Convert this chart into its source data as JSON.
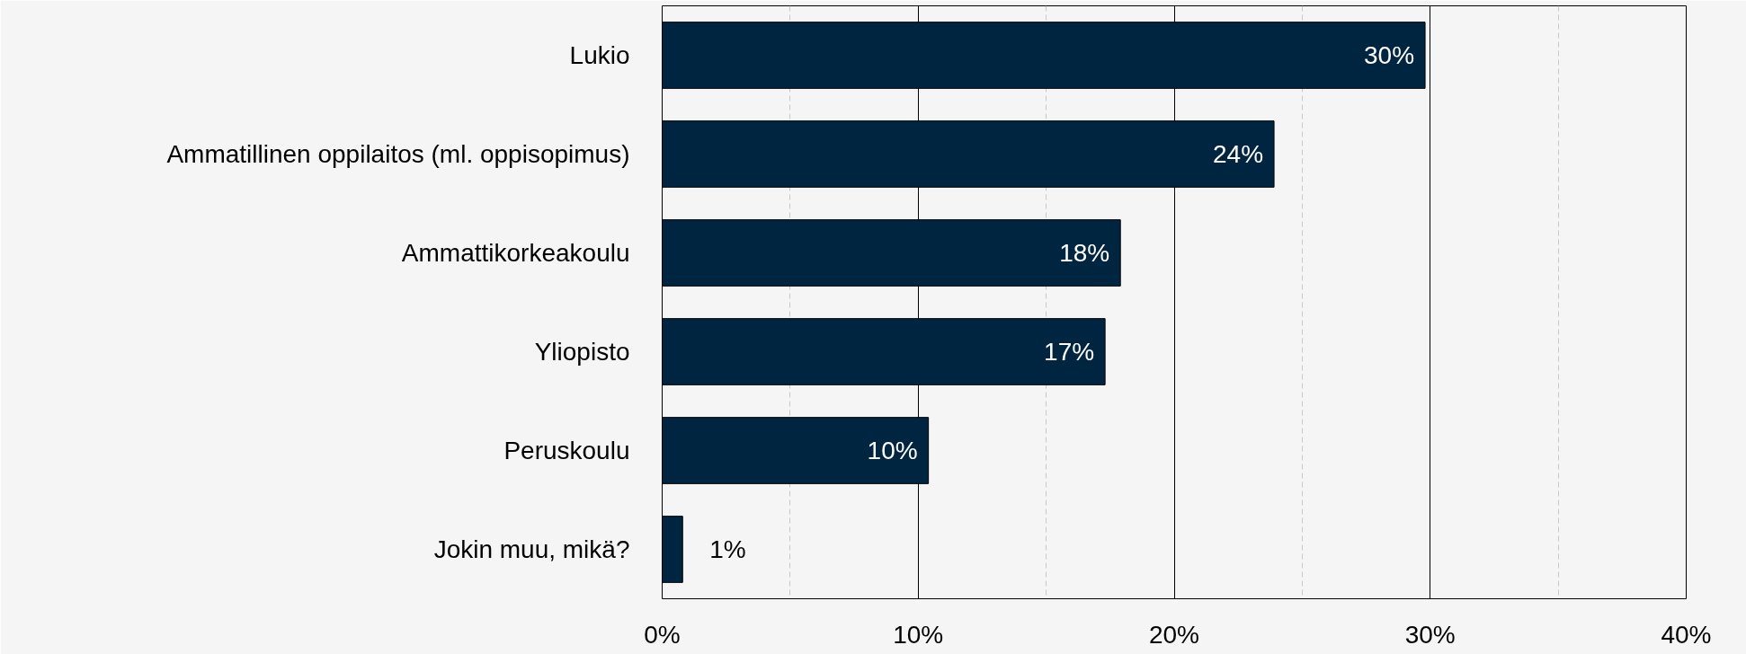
{
  "chart_data": {
    "type": "bar",
    "orientation": "horizontal",
    "categories": [
      "Lukio",
      "Ammatillinen oppilaitos (ml. oppisopimus)",
      "Ammattikorkeakoulu",
      "Yliopisto",
      "Peruskoulu",
      "Jokin muu, mikä?"
    ],
    "values": [
      29.8,
      23.9,
      17.9,
      17.3,
      10.4,
      0.8
    ],
    "value_labels": [
      "30%",
      "24%",
      "18%",
      "17%",
      "10%",
      "1%"
    ],
    "color": "#002540",
    "xlim": [
      0,
      40
    ],
    "xticks": [
      {
        "value": 0,
        "label": "0%"
      },
      {
        "value": 10,
        "label": "10%"
      },
      {
        "value": 20,
        "label": "20%"
      },
      {
        "value": 30,
        "label": "30%"
      },
      {
        "value": 40,
        "label": "40%"
      }
    ],
    "grid": "x"
  }
}
